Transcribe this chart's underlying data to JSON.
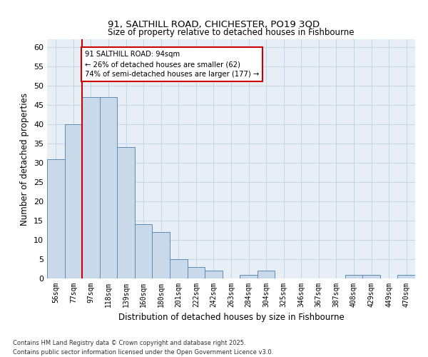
{
  "title1": "91, SALTHILL ROAD, CHICHESTER, PO19 3QD",
  "title2": "Size of property relative to detached houses in Fishbourne",
  "xlabel": "Distribution of detached houses by size in Fishbourne",
  "ylabel": "Number of detached properties",
  "bar_color": "#c9d9ea",
  "bar_edge_color": "#5a8db8",
  "grid_color": "#c5d5e5",
  "background_color": "#e8eef6",
  "categories": [
    "56sqm",
    "77sqm",
    "97sqm",
    "118sqm",
    "139sqm",
    "160sqm",
    "180sqm",
    "201sqm",
    "222sqm",
    "242sqm",
    "263sqm",
    "284sqm",
    "304sqm",
    "325sqm",
    "346sqm",
    "367sqm",
    "387sqm",
    "408sqm",
    "429sqm",
    "449sqm",
    "470sqm"
  ],
  "values": [
    31,
    40,
    47,
    47,
    34,
    14,
    12,
    5,
    3,
    2,
    0,
    1,
    2,
    0,
    0,
    0,
    0,
    1,
    1,
    0,
    1
  ],
  "ylim": [
    0,
    62
  ],
  "yticks": [
    0,
    5,
    10,
    15,
    20,
    25,
    30,
    35,
    40,
    45,
    50,
    55,
    60
  ],
  "vline_index": 1.5,
  "annotation_text": "91 SALTHILL ROAD: 94sqm\n← 26% of detached houses are smaller (62)\n74% of semi-detached houses are larger (177) →",
  "annotation_box_color": "#ffffff",
  "annotation_box_edge": "#cc0000",
  "vline_color": "#cc0000",
  "footnote1": "Contains HM Land Registry data © Crown copyright and database right 2025.",
  "footnote2": "Contains public sector information licensed under the Open Government Licence v3.0."
}
